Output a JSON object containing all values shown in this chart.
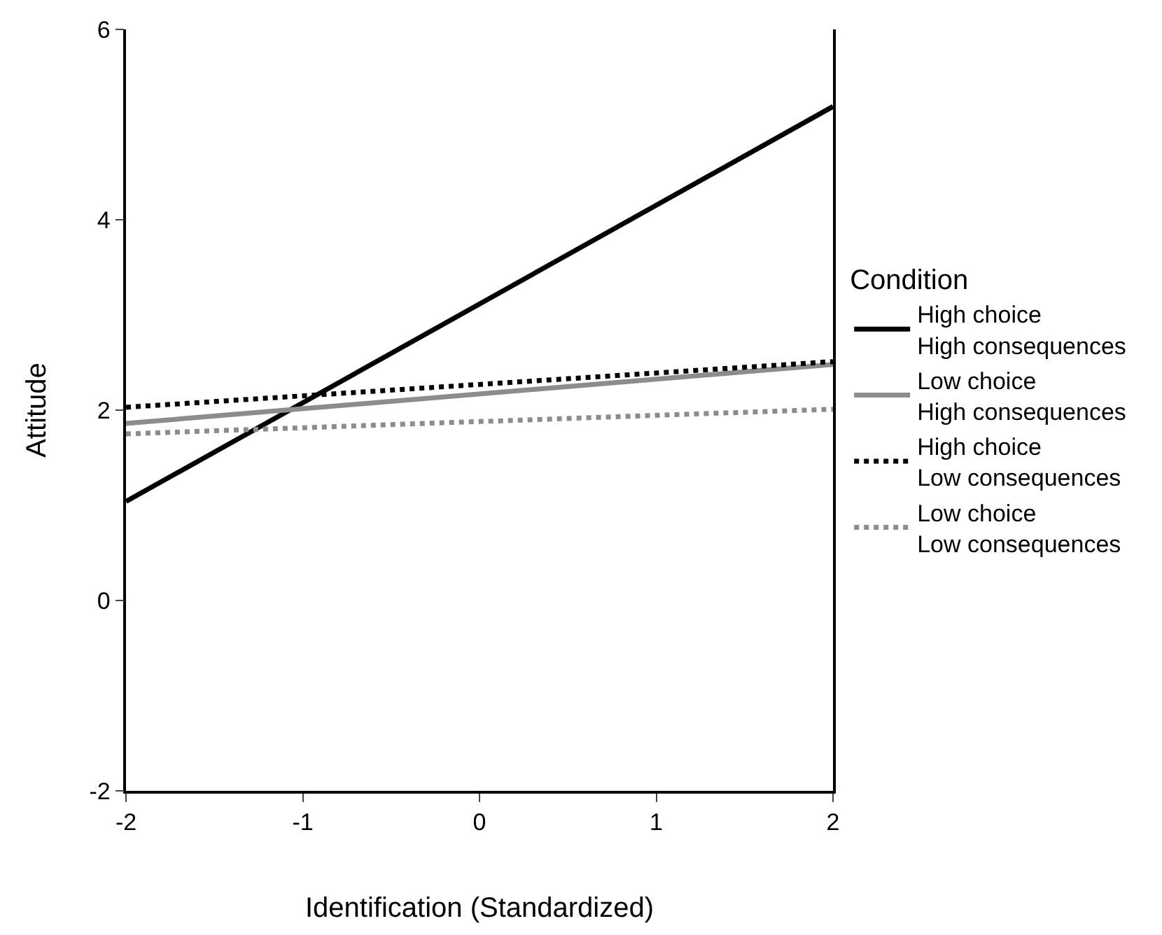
{
  "chart_data": {
    "type": "line",
    "xlabel": "Identification (Standardized)",
    "ylabel": "Attitude",
    "legend_title": "Condition",
    "legend": "right",
    "marker": "none",
    "x": [
      -2,
      2
    ],
    "xlim": [
      -2,
      2
    ],
    "xticks": [
      -2,
      -1,
      0,
      1,
      2
    ],
    "ylim": [
      -2,
      6
    ],
    "yticks": [
      -2,
      0,
      2,
      4,
      6
    ],
    "series": [
      {
        "name": "High choice\nHigh consequences",
        "color": "#000000",
        "line_style": "solid",
        "values": [
          1.04,
          5.19
        ]
      },
      {
        "name": "Low choice\nHigh consequences",
        "color": "#8c8c8c",
        "line_style": "solid",
        "values": [
          1.86,
          2.48
        ]
      },
      {
        "name": "High choice\nLow consequences",
        "color": "#000000",
        "line_style": "dotted",
        "values": [
          2.03,
          2.51
        ]
      },
      {
        "name": "Low choice\nLow consequences",
        "color": "#8c8c8c",
        "line_style": "dotted",
        "values": [
          1.75,
          2.01
        ]
      }
    ]
  }
}
